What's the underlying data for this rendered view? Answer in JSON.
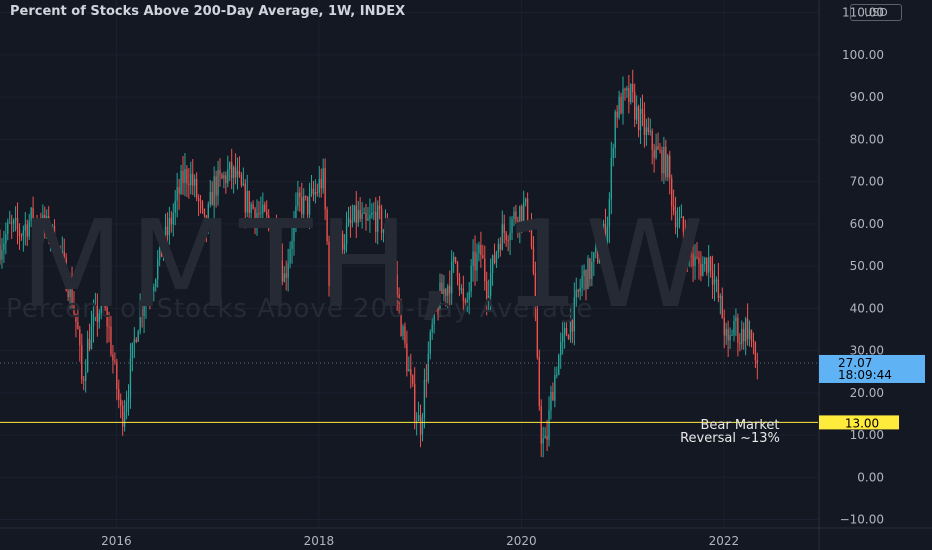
{
  "header": {
    "title": "Percent of Stocks Above 200-Day Average, 1W, INDEX",
    "currency": "USD"
  },
  "watermark": {
    "symbol": "MMTH, 1W",
    "description": "Percent of Stocks Above 200-Day Average"
  },
  "colors": {
    "background": "#141823",
    "up": "#26a69a",
    "down": "#ef5350",
    "price_label": "#5fb3f5",
    "level_line": "#ffeb3b"
  },
  "chart_data": {
    "type": "candlestick",
    "title": "Percent of Stocks Above 200-Day Average, 1W, INDEX",
    "xlim": [
      2014.85,
      2022.93
    ],
    "ylim": [
      -12,
      113
    ],
    "x_ticks": [
      {
        "value": 2016,
        "label": "2016"
      },
      {
        "value": 2018,
        "label": "2018"
      },
      {
        "value": 2020,
        "label": "2020"
      },
      {
        "value": 2022,
        "label": "2022"
      }
    ],
    "y_ticks": [
      {
        "value": 110,
        "label": "110.00"
      },
      {
        "value": 100,
        "label": "100.00"
      },
      {
        "value": 90,
        "label": "90.00"
      },
      {
        "value": 80,
        "label": "80.00"
      },
      {
        "value": 70,
        "label": "70.00"
      },
      {
        "value": 60,
        "label": "60.00"
      },
      {
        "value": 50,
        "label": "50.00"
      },
      {
        "value": 40,
        "label": "40.00"
      },
      {
        "value": 30,
        "label": "30.00"
      },
      {
        "value": 20,
        "label": "20.00"
      },
      {
        "value": 10,
        "label": "10.00"
      },
      {
        "value": 0,
        "label": "0.00"
      },
      {
        "value": -10,
        "label": "−10.00"
      }
    ],
    "close_trajectory": [
      [
        2014.85,
        55
      ],
      [
        2014.95,
        59
      ],
      [
        2015.05,
        58
      ],
      [
        2015.15,
        61
      ],
      [
        2015.25,
        60
      ],
      [
        2015.35,
        58
      ],
      [
        2015.45,
        52
      ],
      [
        2015.55,
        44
      ],
      [
        2015.62,
        34
      ],
      [
        2015.66,
        22
      ],
      [
        2015.72,
        32
      ],
      [
        2015.8,
        38
      ],
      [
        2015.86,
        41
      ],
      [
        2015.92,
        36
      ],
      [
        2015.98,
        25
      ],
      [
        2016.05,
        14
      ],
      [
        2016.12,
        22
      ],
      [
        2016.2,
        36
      ],
      [
        2016.28,
        43
      ],
      [
        2016.36,
        47
      ],
      [
        2016.44,
        53
      ],
      [
        2016.52,
        59
      ],
      [
        2016.6,
        66
      ],
      [
        2016.66,
        71
      ],
      [
        2016.72,
        72
      ],
      [
        2016.8,
        66
      ],
      [
        2016.88,
        58
      ],
      [
        2016.96,
        69
      ],
      [
        2017.04,
        70
      ],
      [
        2017.1,
        72
      ],
      [
        2017.18,
        71
      ],
      [
        2017.26,
        66
      ],
      [
        2017.34,
        64
      ],
      [
        2017.42,
        62
      ],
      [
        2017.5,
        60
      ],
      [
        2017.56,
        58
      ],
      [
        2017.62,
        52
      ],
      [
        2017.66,
        47
      ],
      [
        2017.72,
        56
      ],
      [
        2017.8,
        65
      ],
      [
        2017.88,
        64
      ],
      [
        2017.96,
        67
      ],
      [
        2018.04,
        71
      ],
      [
        2018.1,
        48
      ],
      [
        2018.16,
        46
      ],
      [
        2018.22,
        56
      ],
      [
        2018.3,
        59
      ],
      [
        2018.38,
        62
      ],
      [
        2018.46,
        59
      ],
      [
        2018.54,
        62
      ],
      [
        2018.62,
        60
      ],
      [
        2018.7,
        56
      ],
      [
        2018.76,
        46
      ],
      [
        2018.82,
        35
      ],
      [
        2018.88,
        26
      ],
      [
        2018.94,
        17
      ],
      [
        2019.0,
        12
      ],
      [
        2019.06,
        25
      ],
      [
        2019.12,
        35
      ],
      [
        2019.2,
        43
      ],
      [
        2019.28,
        46
      ],
      [
        2019.36,
        52
      ],
      [
        2019.44,
        38
      ],
      [
        2019.52,
        50
      ],
      [
        2019.6,
        53
      ],
      [
        2019.66,
        45
      ],
      [
        2019.72,
        50
      ],
      [
        2019.78,
        57
      ],
      [
        2019.86,
        59
      ],
      [
        2019.94,
        62
      ],
      [
        2020.02,
        64
      ],
      [
        2020.08,
        61
      ],
      [
        2020.12,
        48
      ],
      [
        2020.16,
        24
      ],
      [
        2020.2,
        9
      ],
      [
        2020.24,
        7
      ],
      [
        2020.3,
        20
      ],
      [
        2020.36,
        28
      ],
      [
        2020.44,
        34
      ],
      [
        2020.52,
        39
      ],
      [
        2020.6,
        47
      ],
      [
        2020.68,
        49
      ],
      [
        2020.74,
        52
      ],
      [
        2020.8,
        56
      ],
      [
        2020.86,
        62
      ],
      [
        2020.92,
        86
      ],
      [
        2021.0,
        89
      ],
      [
        2021.08,
        90
      ],
      [
        2021.14,
        86
      ],
      [
        2021.22,
        82
      ],
      [
        2021.3,
        78
      ],
      [
        2021.36,
        76
      ],
      [
        2021.44,
        74
      ],
      [
        2021.5,
        64
      ],
      [
        2021.56,
        60
      ],
      [
        2021.62,
        57
      ],
      [
        2021.7,
        51
      ],
      [
        2021.78,
        50
      ],
      [
        2021.86,
        52
      ],
      [
        2021.92,
        45
      ],
      [
        2021.98,
        39
      ],
      [
        2022.04,
        30
      ],
      [
        2022.1,
        37
      ],
      [
        2022.16,
        33
      ],
      [
        2022.22,
        36
      ],
      [
        2022.26,
        34
      ],
      [
        2022.3,
        28
      ],
      [
        2022.34,
        27.07
      ]
    ],
    "last_price": {
      "value": 27.07,
      "label": "27.07",
      "countdown": "18:09:44"
    },
    "level_line": {
      "value": 13,
      "label": "13.00"
    },
    "annotation": {
      "lines": [
        "Bear Market",
        "Reversal ~13%"
      ],
      "x": 2021.58,
      "y": 11
    }
  }
}
